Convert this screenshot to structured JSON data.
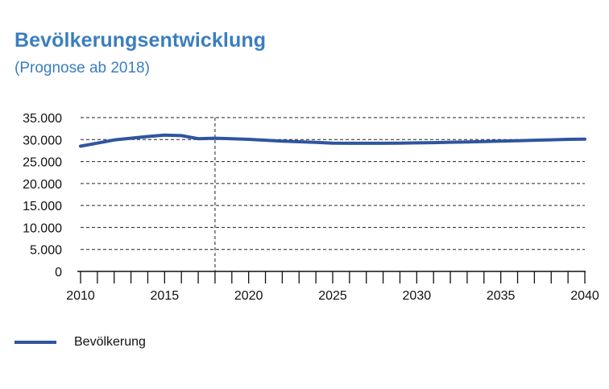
{
  "chart_data": {
    "type": "line",
    "title": "Bevölkerungsentwicklung",
    "subtitle": "(Prognose ab 2018)",
    "xlabel": "",
    "ylabel": "",
    "xlim": [
      2010,
      2040
    ],
    "ylim": [
      0,
      35000
    ],
    "x_ticks": [
      "2010",
      "2015",
      "2020",
      "2025",
      "2030",
      "2035",
      "2040"
    ],
    "y_ticks": [
      "0",
      "5.000",
      "10.000",
      "15.000",
      "20.000",
      "25.000",
      "30.000",
      "35.000"
    ],
    "forecast_start": 2018,
    "grid": "horizontal dashed",
    "legend_position": "bottom-left",
    "color": "#2f55a0",
    "x": [
      2010,
      2011,
      2012,
      2013,
      2014,
      2015,
      2016,
      2017,
      2018,
      2019,
      2020,
      2021,
      2022,
      2023,
      2024,
      2025,
      2026,
      2027,
      2028,
      2029,
      2030,
      2031,
      2032,
      2033,
      2034,
      2035,
      2036,
      2037,
      2038,
      2039,
      2040
    ],
    "series": [
      {
        "name": "Bevölkerung",
        "values": [
          28500,
          29200,
          29900,
          30300,
          30700,
          31000,
          30900,
          30200,
          30300,
          30200,
          30050,
          29850,
          29650,
          29500,
          29350,
          29200,
          29150,
          29150,
          29150,
          29200,
          29250,
          29300,
          29400,
          29450,
          29550,
          29650,
          29750,
          29850,
          29950,
          30050,
          30100
        ]
      }
    ]
  }
}
